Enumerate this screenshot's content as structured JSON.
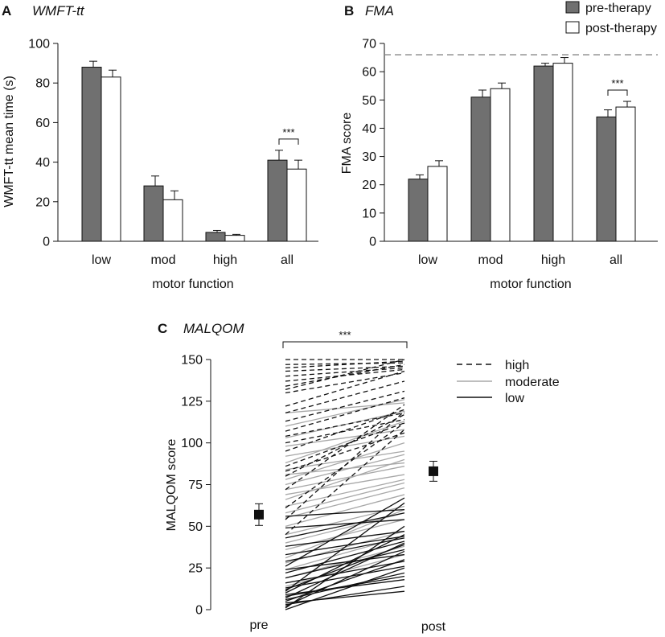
{
  "colors": {
    "pre": "#707070",
    "post": "#ffffff",
    "stroke": "#111111",
    "high": "#111111",
    "moderate": "#a8a8a8",
    "low": "#111111",
    "reference_line": "#888888"
  },
  "legend_ab": [
    {
      "label": "pre-therapy",
      "key": "pre"
    },
    {
      "label": "post-therapy",
      "key": "post"
    }
  ],
  "legend_c": [
    {
      "label": "high",
      "key": "high",
      "dash": "dashed"
    },
    {
      "label": "moderate",
      "key": "moderate",
      "dash": "solid"
    },
    {
      "label": "low",
      "key": "low",
      "dash": "solid"
    }
  ],
  "chart_data": [
    {
      "id": "A",
      "letter": "A",
      "title": "WMFT-tt",
      "type": "bar",
      "xlabel": "motor function",
      "ylabel": "WMFT-tt mean time (s)",
      "categories": [
        "low",
        "mod",
        "high",
        "all"
      ],
      "ylim": [
        0,
        100
      ],
      "yticks": [
        "0",
        "20",
        "40",
        "60",
        "80",
        "100"
      ],
      "series": [
        {
          "name": "pre-therapy",
          "key": "pre",
          "values": [
            88,
            28,
            4.5,
            41
          ],
          "errors": [
            3,
            5,
            1,
            5
          ]
        },
        {
          "name": "post-therapy",
          "key": "post",
          "values": [
            83,
            21,
            3,
            36.5
          ],
          "errors": [
            3.5,
            4.5,
            0.5,
            4.5
          ]
        }
      ],
      "significance": {
        "category": "all",
        "label": "***"
      }
    },
    {
      "id": "B",
      "letter": "B",
      "title": "FMA",
      "type": "bar",
      "xlabel": "motor function",
      "ylabel": "FMA score",
      "categories": [
        "low",
        "mod",
        "high",
        "all"
      ],
      "ylim": [
        0,
        70
      ],
      "yticks": [
        "0",
        "10",
        "20",
        "30",
        "40",
        "50",
        "60",
        "70"
      ],
      "reference_line": 66,
      "series": [
        {
          "name": "pre-therapy",
          "key": "pre",
          "values": [
            22,
            51,
            62,
            44
          ],
          "errors": [
            1.5,
            2.5,
            1,
            2.5
          ]
        },
        {
          "name": "post-therapy",
          "key": "post",
          "values": [
            26.5,
            54,
            63,
            47.5
          ],
          "errors": [
            2,
            2,
            2,
            2
          ]
        }
      ],
      "significance": {
        "category": "all",
        "label": "***"
      }
    },
    {
      "id": "C",
      "letter": "C",
      "title": "MALQOM",
      "type": "line",
      "xlabel": "",
      "ylabel": "MALQOM score",
      "categories": [
        "pre",
        "post"
      ],
      "ylim": [
        0,
        150
      ],
      "yticks": [
        "0",
        "25",
        "50",
        "75",
        "100",
        "125",
        "150"
      ],
      "means": {
        "pre": 57,
        "pre_error": 6.5,
        "post": 83,
        "post_error": 6
      },
      "significance": {
        "label": "***"
      },
      "series": [
        {
          "group": "high",
          "pre": 150,
          "post": 150
        },
        {
          "group": "high",
          "pre": 147,
          "post": 148
        },
        {
          "group": "high",
          "pre": 145,
          "post": 149
        },
        {
          "group": "high",
          "pre": 143,
          "post": 146
        },
        {
          "group": "high",
          "pre": 140,
          "post": 145
        },
        {
          "group": "high",
          "pre": 137,
          "post": 144
        },
        {
          "group": "high",
          "pre": 134,
          "post": 147
        },
        {
          "group": "high",
          "pre": 132,
          "post": 150
        },
        {
          "group": "high",
          "pre": 130,
          "post": 142
        },
        {
          "group": "high",
          "pre": 122,
          "post": 143
        },
        {
          "group": "high",
          "pre": 118,
          "post": 137
        },
        {
          "group": "high",
          "pre": 113,
          "post": 131
        },
        {
          "group": "high",
          "pre": 107,
          "post": 127
        },
        {
          "group": "high",
          "pre": 104,
          "post": 118
        },
        {
          "group": "high",
          "pre": 100,
          "post": 114
        },
        {
          "group": "high",
          "pre": 95,
          "post": 120
        },
        {
          "group": "high",
          "pre": 86,
          "post": 112
        },
        {
          "group": "high",
          "pre": 83,
          "post": 106
        },
        {
          "group": "high",
          "pre": 80,
          "post": 117
        },
        {
          "group": "high",
          "pre": 72,
          "post": 123
        },
        {
          "group": "high",
          "pre": 61,
          "post": 112
        },
        {
          "group": "high",
          "pre": 54,
          "post": 119
        },
        {
          "group": "high",
          "pre": 45,
          "post": 108
        },
        {
          "group": "moderate",
          "pre": 118,
          "post": 124
        },
        {
          "group": "moderate",
          "pre": 110,
          "post": 126
        },
        {
          "group": "moderate",
          "pre": 103,
          "post": 119
        },
        {
          "group": "moderate",
          "pre": 98,
          "post": 108
        },
        {
          "group": "moderate",
          "pre": 92,
          "post": 104
        },
        {
          "group": "moderate",
          "pre": 88,
          "post": 113
        },
        {
          "group": "moderate",
          "pre": 84,
          "post": 95
        },
        {
          "group": "moderate",
          "pre": 81,
          "post": 88
        },
        {
          "group": "moderate",
          "pre": 78,
          "post": 100
        },
        {
          "group": "moderate",
          "pre": 75,
          "post": 93
        },
        {
          "group": "moderate",
          "pre": 72,
          "post": 86
        },
        {
          "group": "moderate",
          "pre": 69,
          "post": 81
        },
        {
          "group": "moderate",
          "pre": 66,
          "post": 90
        },
        {
          "group": "moderate",
          "pre": 62,
          "post": 78
        },
        {
          "group": "moderate",
          "pre": 58,
          "post": 76
        },
        {
          "group": "moderate",
          "pre": 55,
          "post": 73
        },
        {
          "group": "moderate",
          "pre": 50,
          "post": 69
        },
        {
          "group": "moderate",
          "pre": 45,
          "post": 62
        },
        {
          "group": "moderate",
          "pre": 40,
          "post": 58
        },
        {
          "group": "moderate",
          "pre": 36,
          "post": 54
        },
        {
          "group": "moderate",
          "pre": 31,
          "post": 60
        },
        {
          "group": "moderate",
          "pre": 28,
          "post": 47
        },
        {
          "group": "moderate",
          "pre": 24,
          "post": 44
        },
        {
          "group": "moderate",
          "pre": 19,
          "post": 38
        },
        {
          "group": "moderate",
          "pre": 14,
          "post": 33
        },
        {
          "group": "low",
          "pre": 56,
          "post": 60
        },
        {
          "group": "low",
          "pre": 49,
          "post": 54
        },
        {
          "group": "low",
          "pre": 43,
          "post": 58
        },
        {
          "group": "low",
          "pre": 38,
          "post": 47
        },
        {
          "group": "low",
          "pre": 33,
          "post": 44
        },
        {
          "group": "low",
          "pre": 29,
          "post": 43
        },
        {
          "group": "low",
          "pre": 26,
          "post": 67
        },
        {
          "group": "low",
          "pre": 22,
          "post": 41
        },
        {
          "group": "low",
          "pre": 19,
          "post": 36
        },
        {
          "group": "low",
          "pre": 16,
          "post": 29
        },
        {
          "group": "low",
          "pre": 13,
          "post": 26
        },
        {
          "group": "low",
          "pre": 11,
          "post": 64
        },
        {
          "group": "low",
          "pre": 10,
          "post": 45
        },
        {
          "group": "low",
          "pre": 9,
          "post": 18
        },
        {
          "group": "low",
          "pre": 7,
          "post": 40
        },
        {
          "group": "low",
          "pre": 6,
          "post": 22
        },
        {
          "group": "low",
          "pre": 5,
          "post": 30
        },
        {
          "group": "low",
          "pre": 4,
          "post": 11
        },
        {
          "group": "low",
          "pre": 3,
          "post": 14
        },
        {
          "group": "low",
          "pre": 2,
          "post": 35
        },
        {
          "group": "low",
          "pre": 1,
          "post": 50
        },
        {
          "group": "low",
          "pre": 0,
          "post": 25
        },
        {
          "group": "low",
          "pre": 12,
          "post": 39
        },
        {
          "group": "low",
          "pre": 24,
          "post": 33
        },
        {
          "group": "low",
          "pre": 8,
          "post": 20
        }
      ]
    }
  ]
}
